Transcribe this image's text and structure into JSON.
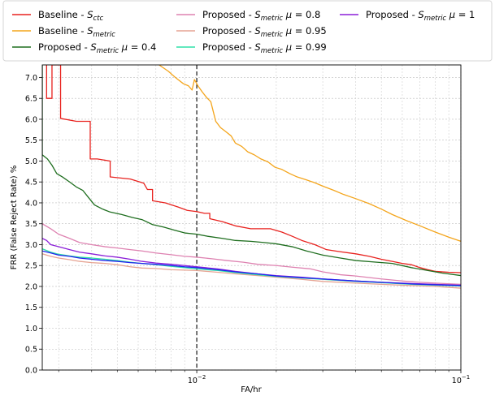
{
  "chart_data": {
    "type": "line",
    "title": "",
    "xlabel": "FA/hr",
    "ylabel": "FRR (False Reject Rate) %",
    "xscale": "log",
    "xlim": [
      0.0026,
      0.1
    ],
    "ylim": [
      0,
      7.3
    ],
    "x_ticks": [
      {
        "value": 0.01,
        "base": "10",
        "exp": "−2"
      },
      {
        "value": 0.1,
        "base": "10",
        "exp": "−1"
      }
    ],
    "y_ticks": [
      "0.0",
      "0.5",
      "1.0",
      "1.5",
      "2.0",
      "2.5",
      "3.0",
      "3.5",
      "4.0",
      "4.5",
      "5.0",
      "5.5",
      "6.0",
      "6.5",
      "7.0"
    ],
    "grid": true,
    "reference_line": {
      "x": 0.01,
      "style": "dashed",
      "color": "#000000"
    },
    "legend_position": "top",
    "series": [
      {
        "name": "Baseline - S_ctc",
        "prefix": "Baseline - ",
        "sym": "S",
        "sub": "ctc",
        "mu": "",
        "color": "#e8221e",
        "points": [
          [
            0.0027,
            7.3
          ],
          [
            0.0027,
            6.5
          ],
          [
            0.00283,
            6.5
          ],
          [
            0.00283,
            7.3
          ],
          [
            0.00305,
            7.3
          ],
          [
            0.00305,
            6.02
          ],
          [
            0.0035,
            5.95
          ],
          [
            0.00395,
            5.95
          ],
          [
            0.00395,
            5.05
          ],
          [
            0.0042,
            5.05
          ],
          [
            0.0047,
            5.0
          ],
          [
            0.0047,
            4.62
          ],
          [
            0.0056,
            4.57
          ],
          [
            0.0063,
            4.47
          ],
          [
            0.0065,
            4.32
          ],
          [
            0.0068,
            4.32
          ],
          [
            0.0068,
            4.05
          ],
          [
            0.0076,
            4.0
          ],
          [
            0.0085,
            3.9
          ],
          [
            0.0092,
            3.82
          ],
          [
            0.01,
            3.79
          ],
          [
            0.0107,
            3.75
          ],
          [
            0.0112,
            3.75
          ],
          [
            0.0112,
            3.62
          ],
          [
            0.0125,
            3.55
          ],
          [
            0.014,
            3.45
          ],
          [
            0.016,
            3.38
          ],
          [
            0.019,
            3.38
          ],
          [
            0.021,
            3.3
          ],
          [
            0.023,
            3.2
          ],
          [
            0.025,
            3.1
          ],
          [
            0.028,
            3.0
          ],
          [
            0.031,
            2.88
          ],
          [
            0.035,
            2.83
          ],
          [
            0.04,
            2.78
          ],
          [
            0.045,
            2.72
          ],
          [
            0.05,
            2.65
          ],
          [
            0.055,
            2.6
          ],
          [
            0.06,
            2.55
          ],
          [
            0.065,
            2.52
          ],
          [
            0.07,
            2.45
          ],
          [
            0.075,
            2.4
          ],
          [
            0.08,
            2.36
          ],
          [
            0.09,
            2.34
          ],
          [
            0.1,
            2.33
          ]
        ]
      },
      {
        "name": "Baseline - S_metric",
        "prefix": "Baseline - ",
        "sym": "S",
        "sub": "metric",
        "mu": "",
        "color": "#f4a51c",
        "points": [
          [
            0.0072,
            7.3
          ],
          [
            0.0078,
            7.15
          ],
          [
            0.0083,
            7.0
          ],
          [
            0.0089,
            6.85
          ],
          [
            0.0093,
            6.8
          ],
          [
            0.0096,
            6.7
          ],
          [
            0.0098,
            6.95
          ],
          [
            0.0101,
            6.8
          ],
          [
            0.0105,
            6.65
          ],
          [
            0.0109,
            6.52
          ],
          [
            0.0113,
            6.42
          ],
          [
            0.0118,
            5.95
          ],
          [
            0.0123,
            5.8
          ],
          [
            0.0129,
            5.7
          ],
          [
            0.0135,
            5.6
          ],
          [
            0.014,
            5.43
          ],
          [
            0.0148,
            5.35
          ],
          [
            0.0156,
            5.22
          ],
          [
            0.0165,
            5.15
          ],
          [
            0.0175,
            5.05
          ],
          [
            0.0186,
            4.98
          ],
          [
            0.0198,
            4.85
          ],
          [
            0.021,
            4.8
          ],
          [
            0.0225,
            4.7
          ],
          [
            0.024,
            4.62
          ],
          [
            0.026,
            4.55
          ],
          [
            0.028,
            4.48
          ],
          [
            0.03,
            4.4
          ],
          [
            0.033,
            4.3
          ],
          [
            0.036,
            4.2
          ],
          [
            0.04,
            4.1
          ],
          [
            0.045,
            3.98
          ],
          [
            0.05,
            3.85
          ],
          [
            0.055,
            3.72
          ],
          [
            0.062,
            3.58
          ],
          [
            0.07,
            3.45
          ],
          [
            0.08,
            3.3
          ],
          [
            0.09,
            3.18
          ],
          [
            0.1,
            3.08
          ]
        ]
      },
      {
        "name": "Proposed - S_metric μ=0.4",
        "prefix": "Proposed - ",
        "sym": "S",
        "sub": "metric",
        "mu": "0.4",
        "color": "#1f6e1f",
        "points": [
          [
            0.0026,
            7.3
          ],
          [
            0.0026,
            5.15
          ],
          [
            0.00272,
            5.05
          ],
          [
            0.00283,
            4.9
          ],
          [
            0.00295,
            4.7
          ],
          [
            0.0031,
            4.62
          ],
          [
            0.0033,
            4.5
          ],
          [
            0.0035,
            4.38
          ],
          [
            0.0037,
            4.3
          ],
          [
            0.0039,
            4.12
          ],
          [
            0.0041,
            3.95
          ],
          [
            0.0044,
            3.85
          ],
          [
            0.0047,
            3.78
          ],
          [
            0.0052,
            3.72
          ],
          [
            0.0057,
            3.65
          ],
          [
            0.0062,
            3.6
          ],
          [
            0.0068,
            3.48
          ],
          [
            0.0075,
            3.42
          ],
          [
            0.0082,
            3.35
          ],
          [
            0.009,
            3.28
          ],
          [
            0.01,
            3.25
          ],
          [
            0.011,
            3.2
          ],
          [
            0.0125,
            3.15
          ],
          [
            0.014,
            3.1
          ],
          [
            0.016,
            3.08
          ],
          [
            0.018,
            3.05
          ],
          [
            0.02,
            3.02
          ],
          [
            0.023,
            2.95
          ],
          [
            0.026,
            2.85
          ],
          [
            0.03,
            2.75
          ],
          [
            0.035,
            2.68
          ],
          [
            0.04,
            2.62
          ],
          [
            0.048,
            2.58
          ],
          [
            0.055,
            2.55
          ],
          [
            0.065,
            2.45
          ],
          [
            0.075,
            2.38
          ],
          [
            0.085,
            2.32
          ],
          [
            0.1,
            2.26
          ]
        ]
      },
      {
        "name": "Proposed - S_metric μ=0.8",
        "prefix": "Proposed - ",
        "sym": "S",
        "sub": "metric",
        "mu": "0.8",
        "color": "#de82b1",
        "points": [
          [
            0.0026,
            3.5
          ],
          [
            0.0028,
            3.38
          ],
          [
            0.003,
            3.25
          ],
          [
            0.0033,
            3.15
          ],
          [
            0.0036,
            3.05
          ],
          [
            0.004,
            3.0
          ],
          [
            0.0045,
            2.95
          ],
          [
            0.005,
            2.92
          ],
          [
            0.0056,
            2.88
          ],
          [
            0.0062,
            2.85
          ],
          [
            0.007,
            2.8
          ],
          [
            0.008,
            2.76
          ],
          [
            0.009,
            2.72
          ],
          [
            0.01,
            2.7
          ],
          [
            0.0115,
            2.66
          ],
          [
            0.013,
            2.62
          ],
          [
            0.015,
            2.58
          ],
          [
            0.017,
            2.53
          ],
          [
            0.02,
            2.5
          ],
          [
            0.023,
            2.46
          ],
          [
            0.027,
            2.42
          ],
          [
            0.03,
            2.35
          ],
          [
            0.035,
            2.28
          ],
          [
            0.04,
            2.25
          ],
          [
            0.05,
            2.18
          ],
          [
            0.06,
            2.13
          ],
          [
            0.07,
            2.1
          ],
          [
            0.08,
            2.08
          ],
          [
            0.1,
            2.05
          ]
        ]
      },
      {
        "name": "Proposed - S_metric μ=0.95",
        "prefix": "Proposed - ",
        "sym": "S",
        "sub": "metric",
        "mu": "0.95",
        "color": "#e6a493",
        "points": [
          [
            0.0026,
            2.78
          ],
          [
            0.0028,
            2.72
          ],
          [
            0.003,
            2.68
          ],
          [
            0.0033,
            2.64
          ],
          [
            0.0036,
            2.6
          ],
          [
            0.004,
            2.57
          ],
          [
            0.0045,
            2.55
          ],
          [
            0.005,
            2.52
          ],
          [
            0.0056,
            2.47
          ],
          [
            0.0062,
            2.44
          ],
          [
            0.007,
            2.43
          ],
          [
            0.008,
            2.4
          ],
          [
            0.009,
            2.39
          ],
          [
            0.01,
            2.38
          ],
          [
            0.012,
            2.34
          ],
          [
            0.014,
            2.3
          ],
          [
            0.017,
            2.26
          ],
          [
            0.02,
            2.22
          ],
          [
            0.025,
            2.17
          ],
          [
            0.03,
            2.12
          ],
          [
            0.04,
            2.08
          ],
          [
            0.05,
            2.05
          ],
          [
            0.065,
            2.02
          ],
          [
            0.08,
            2.0
          ],
          [
            0.1,
            1.96
          ]
        ]
      },
      {
        "name": "Proposed - S_metric μ=0.99",
        "prefix": "Proposed - ",
        "sym": "S",
        "sub": "metric",
        "mu": "0.99",
        "color": "#2ee0a8",
        "points": [
          [
            0.0026,
            2.9
          ],
          [
            0.0028,
            2.82
          ],
          [
            0.003,
            2.77
          ],
          [
            0.0033,
            2.73
          ],
          [
            0.0036,
            2.7
          ],
          [
            0.004,
            2.68
          ],
          [
            0.0045,
            2.65
          ],
          [
            0.005,
            2.62
          ],
          [
            0.0056,
            2.58
          ],
          [
            0.0062,
            2.55
          ],
          [
            0.007,
            2.52
          ],
          [
            0.008,
            2.48
          ],
          [
            0.009,
            2.45
          ],
          [
            0.01,
            2.42
          ],
          [
            0.012,
            2.38
          ],
          [
            0.014,
            2.33
          ],
          [
            0.017,
            2.28
          ],
          [
            0.02,
            2.24
          ],
          [
            0.025,
            2.2
          ],
          [
            0.03,
            2.17
          ],
          [
            0.04,
            2.12
          ],
          [
            0.05,
            2.09
          ],
          [
            0.065,
            2.05
          ],
          [
            0.08,
            2.03
          ],
          [
            0.1,
            2.01
          ]
        ]
      },
      {
        "name": "Proposed - S_metric μ=1",
        "prefix": "Proposed - ",
        "sym": "S",
        "sub": "metric",
        "mu": "1",
        "color": "#8b1fd8",
        "points": [
          [
            0.0026,
            3.15
          ],
          [
            0.0027,
            3.1
          ],
          [
            0.0028,
            3.0
          ],
          [
            0.003,
            2.95
          ],
          [
            0.0033,
            2.88
          ],
          [
            0.0036,
            2.82
          ],
          [
            0.004,
            2.78
          ],
          [
            0.0045,
            2.73
          ],
          [
            0.005,
            2.7
          ],
          [
            0.0056,
            2.65
          ],
          [
            0.0062,
            2.6
          ],
          [
            0.007,
            2.56
          ],
          [
            0.008,
            2.53
          ],
          [
            0.009,
            2.5
          ],
          [
            0.01,
            2.47
          ],
          [
            0.012,
            2.42
          ],
          [
            0.014,
            2.36
          ],
          [
            0.017,
            2.3
          ],
          [
            0.02,
            2.26
          ],
          [
            0.025,
            2.22
          ],
          [
            0.03,
            2.18
          ],
          [
            0.04,
            2.13
          ],
          [
            0.05,
            2.1
          ],
          [
            0.065,
            2.07
          ],
          [
            0.08,
            2.05
          ],
          [
            0.1,
            2.03
          ]
        ]
      },
      {
        "name": "",
        "sym": "",
        "legend": false,
        "color": "#2222ee",
        "points": [
          [
            0.0026,
            2.85
          ],
          [
            0.0028,
            2.8
          ],
          [
            0.003,
            2.75
          ],
          [
            0.0033,
            2.72
          ],
          [
            0.0036,
            2.68
          ],
          [
            0.004,
            2.65
          ],
          [
            0.0045,
            2.62
          ],
          [
            0.005,
            2.6
          ],
          [
            0.0056,
            2.57
          ],
          [
            0.0062,
            2.55
          ],
          [
            0.007,
            2.53
          ],
          [
            0.008,
            2.5
          ],
          [
            0.009,
            2.47
          ],
          [
            0.01,
            2.45
          ],
          [
            0.012,
            2.4
          ],
          [
            0.014,
            2.35
          ],
          [
            0.017,
            2.3
          ],
          [
            0.02,
            2.25
          ],
          [
            0.025,
            2.21
          ],
          [
            0.03,
            2.18
          ],
          [
            0.04,
            2.13
          ],
          [
            0.05,
            2.1
          ],
          [
            0.065,
            2.06
          ],
          [
            0.08,
            2.04
          ],
          [
            0.1,
            2.02
          ]
        ]
      }
    ]
  }
}
